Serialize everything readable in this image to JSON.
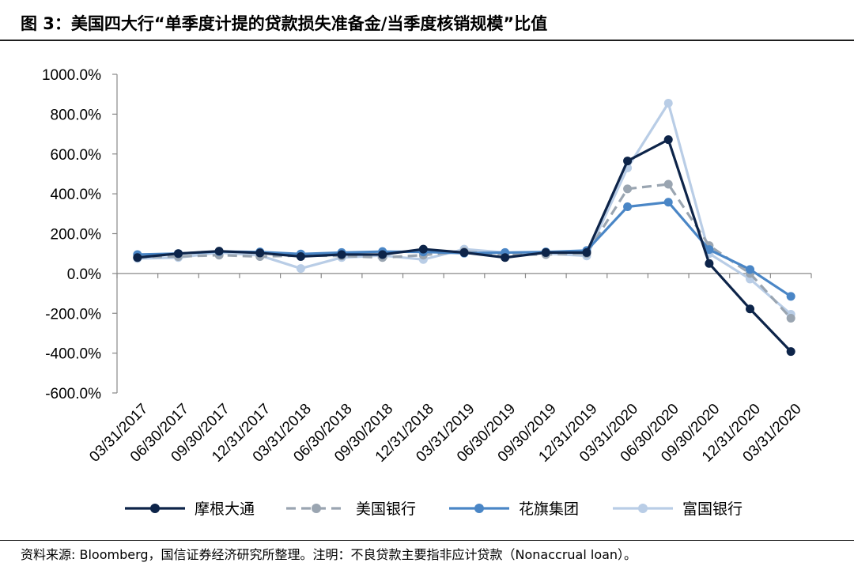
{
  "figure": {
    "title": "图 3：美国四大行“单季度计提的贷款损失准备金/当季度核销规模”比值",
    "source": "资料来源: Bloomberg，国信证券经济研究所整理。注明：不良贷款主要指非应计贷款（Nonaccrual loan）。"
  },
  "chart_data": {
    "type": "line",
    "title": "美国四大行“单季度计提的贷款损失准备金/当季度核销规模”比值",
    "xlabel": "",
    "ylabel": "",
    "x": [
      "03/31/2017",
      "06/30/2017",
      "09/30/2017",
      "12/31/2017",
      "03/31/2018",
      "06/30/2018",
      "09/30/2018",
      "12/31/2018",
      "03/31/2019",
      "06/30/2019",
      "09/30/2019",
      "12/31/2019",
      "03/31/2020",
      "06/30/2020",
      "09/30/2020",
      "12/31/2020",
      "03/31/2020"
    ],
    "y_ticks": [
      "1000.0%",
      "800.0%",
      "600.0%",
      "400.0%",
      "200.0%",
      "0.0%",
      "-200.0%",
      "-400.0%",
      "-600.0%"
    ],
    "ylim": [
      -600,
      1000
    ],
    "y_unit": "%",
    "grid": false,
    "legend_position": "bottom",
    "series": [
      {
        "name": "摩根大通",
        "color": "#0d2449",
        "dash": "solid",
        "values": [
          80,
          100,
          112,
          103,
          85,
          95,
          95,
          122,
          105,
          80,
          105,
          105,
          565,
          672,
          50,
          -178,
          -392
        ]
      },
      {
        "name": "美国银行",
        "color": "#9aa5b1",
        "dash": "dashed",
        "values": [
          82,
          85,
          92,
          85,
          90,
          88,
          80,
          92,
          110,
          95,
          95,
          100,
          425,
          448,
          140,
          0,
          -225
        ]
      },
      {
        "name": "花旗集团",
        "color": "#4a86c6",
        "dash": "solid",
        "values": [
          95,
          100,
          110,
          108,
          98,
          105,
          110,
          108,
          102,
          105,
          108,
          115,
          335,
          358,
          120,
          20,
          -115
        ]
      },
      {
        "name": "富国银行",
        "color": "#b9cde6",
        "dash": "solid",
        "values": [
          75,
          80,
          105,
          90,
          25,
          80,
          90,
          70,
          122,
          105,
          100,
          88,
          530,
          855,
          100,
          -28,
          -205
        ]
      }
    ]
  }
}
